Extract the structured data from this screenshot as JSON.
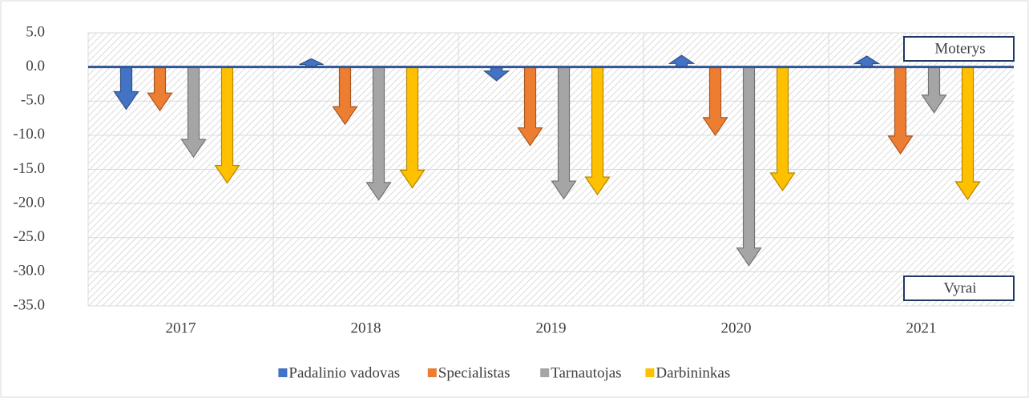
{
  "chart_data": {
    "type": "arrow-bar",
    "categories": [
      "2017",
      "2018",
      "2019",
      "2020",
      "2021"
    ],
    "series": [
      {
        "name": "Padalinio vadovas",
        "color": "#4472c4",
        "values": [
          -6.2,
          1.2,
          -2.0,
          1.7,
          1.6
        ]
      },
      {
        "name": "Specialistas",
        "color": "#ed7d31",
        "values": [
          -6.4,
          -8.4,
          -11.5,
          -10.0,
          -12.7
        ]
      },
      {
        "name": "Tarnautojas",
        "color": "#a5a5a5",
        "values": [
          -13.2,
          -19.5,
          -19.3,
          -29.1,
          -6.7
        ]
      },
      {
        "name": "Darbininkas",
        "color": "#ffc000",
        "values": [
          -17.0,
          -17.7,
          -18.7,
          -18.1,
          -19.4
        ]
      }
    ],
    "ylim": [
      -35,
      5
    ],
    "yticks": [
      {
        "value": 5,
        "label": "5.0"
      },
      {
        "value": 0,
        "label": "0.0"
      },
      {
        "value": -5,
        "label": "-5.0"
      },
      {
        "value": -10,
        "label": "-10.0"
      },
      {
        "value": -15,
        "label": "-15.0"
      },
      {
        "value": -20,
        "label": "-20.0"
      },
      {
        "value": -25,
        "label": "-25.0"
      },
      {
        "value": -30,
        "label": "-30.0"
      },
      {
        "value": -35,
        "label": "-35.0"
      }
    ],
    "annotations": [
      "Moterys",
      "Vyrai"
    ],
    "grid": true,
    "legend": "bottom"
  }
}
